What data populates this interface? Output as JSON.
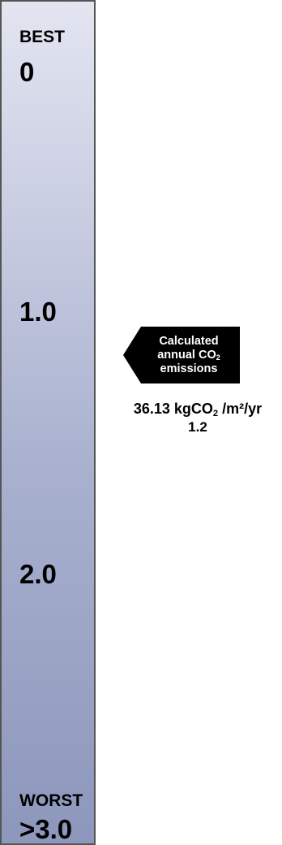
{
  "scale": {
    "best_label": "BEST",
    "best_value": "0",
    "mid_tick_1": "1.0",
    "mid_tick_2": "2.0",
    "worst_label": "WORST",
    "worst_value": ">3.0",
    "gradient_top_color": "#e3e5f1",
    "gradient_bottom_color": "#8d97bc",
    "border_color": "#555555"
  },
  "indicator": {
    "line1": "Calculated",
    "line2_prefix": "annual CO",
    "line2_subscript": "2",
    "line3": "emissions",
    "background_color": "#000000",
    "text_color": "#ffffff"
  },
  "result": {
    "emission_number": "36.13",
    "emission_unit_prefix": "kgCO",
    "emission_unit_subscript": "2",
    "emission_unit_suffix": " /m²/yr",
    "rating": "1.2"
  }
}
